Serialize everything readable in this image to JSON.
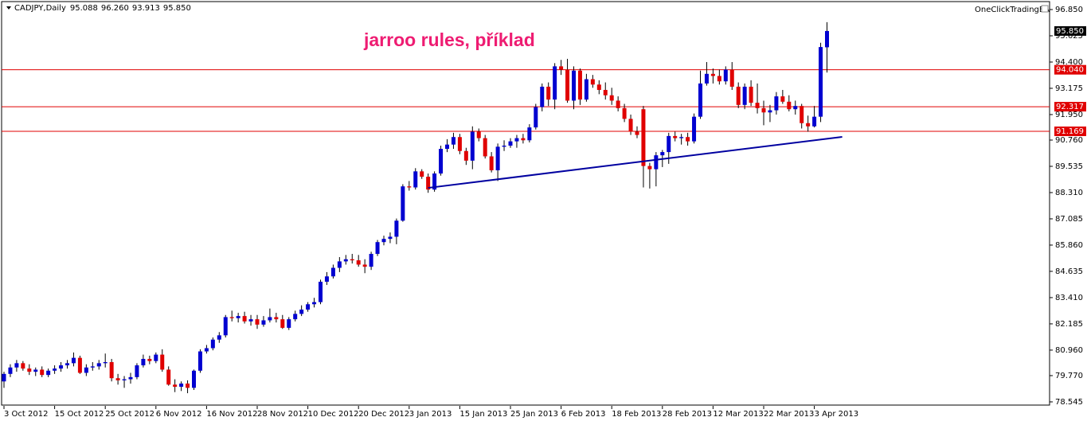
{
  "chart_data": {
    "type": "candlestick",
    "symbol": "CADJPY,Daily",
    "header_values": [
      "95.088",
      "96.260",
      "93.913",
      "95.850"
    ],
    "annotation": "jarroo rules, příklad",
    "indicator": "OneClickTradingEA",
    "up_color": "#0000d0",
    "down_color": "#e00000",
    "wick_color": "#000000",
    "categories": [
      "3 Oct 2012",
      null,
      null,
      null,
      null,
      null,
      null,
      null,
      "15 Oct 2012",
      null,
      null,
      null,
      null,
      null,
      null,
      null,
      "25 Oct 2012",
      null,
      null,
      null,
      null,
      null,
      null,
      null,
      "6 Nov 2012",
      null,
      null,
      null,
      null,
      null,
      null,
      null,
      "16 Nov 2012",
      null,
      null,
      null,
      null,
      null,
      null,
      null,
      "28 Nov 2012",
      null,
      null,
      null,
      null,
      null,
      null,
      null,
      "10 Dec 2012",
      null,
      null,
      null,
      null,
      null,
      null,
      null,
      "20 Dec 2012",
      null,
      null,
      null,
      null,
      null,
      null,
      null,
      "3 Jan 2013",
      null,
      null,
      null,
      null,
      null,
      null,
      null,
      "15 Jan 2013",
      null,
      null,
      null,
      null,
      null,
      null,
      null,
      "25 Jan 2013",
      null,
      null,
      null,
      null,
      null,
      null,
      null,
      "6 Feb 2013",
      null,
      null,
      null,
      null,
      null,
      null,
      null,
      "18 Feb 2013",
      null,
      null,
      null,
      null,
      null,
      null,
      null,
      "28 Feb 2013",
      null,
      null,
      null,
      null,
      null,
      null,
      null,
      "12 Mar 2013",
      null,
      null,
      null,
      null,
      null,
      null,
      null,
      "22 Mar 2013",
      null,
      null,
      null,
      null,
      null,
      null,
      null,
      "3 Apr 2013",
      null,
      null
    ],
    "open": [
      79.5,
      79.85,
      80.15,
      80.35,
      80.1,
      79.95,
      80.05,
      79.8,
      80.0,
      80.1,
      80.25,
      80.35,
      80.6,
      79.9,
      80.15,
      80.2,
      80.35,
      80.4,
      79.65,
      79.55,
      79.6,
      79.7,
      80.25,
      80.55,
      80.45,
      80.75,
      80.05,
      79.35,
      79.25,
      79.4,
      79.2,
      80.0,
      80.9,
      81.05,
      81.45,
      81.65,
      82.5,
      82.45,
      82.55,
      82.3,
      82.4,
      82.15,
      82.35,
      82.5,
      82.4,
      82.0,
      82.4,
      82.65,
      82.85,
      83.1,
      83.2,
      84.15,
      84.4,
      84.8,
      85.1,
      85.2,
      85.15,
      84.95,
      84.85,
      85.45,
      86.0,
      86.15,
      86.25,
      87.0,
      88.6,
      88.55,
      89.3,
      89.05,
      88.45,
      89.2,
      90.35,
      90.55,
      90.9,
      90.25,
      89.8,
      91.15,
      90.85,
      90.0,
      89.35,
      90.45,
      90.5,
      90.7,
      90.85,
      90.75,
      91.35,
      92.3,
      93.25,
      92.65,
      94.2,
      94.05,
      92.6,
      94.0,
      92.65,
      93.6,
      93.35,
      93.1,
      92.85,
      92.6,
      92.25,
      91.75,
      91.15,
      92.2,
      89.55,
      89.4,
      90.05,
      90.2,
      90.95,
      90.85,
      90.9,
      90.7,
      91.85,
      93.4,
      93.85,
      93.75,
      93.5,
      94.05,
      93.25,
      92.4,
      93.25,
      92.5,
      92.25,
      92.05,
      92.15,
      92.8,
      92.55,
      92.2,
      92.35,
      91.55,
      91.4,
      91.85,
      95.088
    ],
    "high": [
      79.95,
      80.3,
      80.5,
      80.45,
      80.3,
      80.15,
      80.2,
      80.1,
      80.25,
      80.4,
      80.5,
      80.85,
      80.7,
      80.3,
      80.4,
      80.5,
      80.8,
      80.55,
      79.85,
      79.75,
      79.9,
      80.35,
      80.75,
      80.7,
      80.85,
      81.0,
      80.2,
      79.6,
      79.5,
      79.55,
      80.05,
      81.0,
      81.2,
      81.55,
      81.8,
      82.6,
      82.8,
      82.7,
      82.75,
      82.6,
      82.6,
      82.55,
      82.9,
      82.7,
      82.6,
      82.5,
      82.8,
      83.05,
      83.2,
      83.4,
      84.25,
      84.6,
      84.95,
      85.3,
      85.4,
      85.45,
      85.4,
      85.2,
      85.55,
      86.1,
      86.3,
      86.45,
      87.1,
      88.7,
      88.85,
      89.45,
      89.4,
      89.2,
      89.3,
      90.5,
      90.8,
      91.1,
      91.05,
      90.4,
      91.4,
      91.3,
      91.0,
      90.2,
      90.6,
      90.75,
      90.85,
      91.0,
      91.05,
      91.5,
      92.45,
      93.4,
      93.45,
      94.35,
      94.5,
      94.55,
      94.2,
      94.1,
      93.85,
      93.8,
      93.55,
      93.45,
      93.2,
      92.8,
      92.45,
      91.95,
      91.4,
      92.35,
      89.7,
      90.2,
      90.3,
      91.1,
      91.15,
      91.05,
      91.1,
      92.0,
      94.0,
      94.4,
      94.1,
      94.05,
      94.2,
      94.4,
      93.45,
      93.4,
      93.55,
      93.4,
      92.6,
      92.4,
      93.0,
      93.1,
      92.85,
      92.6,
      92.45,
      91.9,
      92.35,
      95.3,
      96.26
    ],
    "low": [
      79.2,
      79.7,
      79.95,
      80.0,
      79.8,
      79.75,
      79.7,
      79.7,
      79.85,
      79.95,
      80.1,
      80.2,
      79.85,
      79.75,
      80.0,
      80.05,
      80.15,
      79.5,
      79.35,
      79.2,
      79.4,
      79.6,
      80.15,
      80.3,
      80.35,
      79.95,
      79.3,
      79.0,
      79.05,
      78.95,
      79.1,
      79.9,
      80.8,
      80.95,
      81.3,
      81.55,
      82.3,
      82.25,
      82.2,
      82.1,
      81.95,
      82.05,
      82.25,
      82.25,
      81.95,
      81.9,
      82.3,
      82.55,
      82.75,
      82.95,
      83.1,
      84.0,
      84.3,
      84.6,
      84.95,
      85.0,
      84.85,
      84.55,
      84.7,
      85.35,
      85.85,
      85.95,
      85.9,
      86.95,
      88.4,
      88.45,
      88.95,
      88.3,
      88.35,
      89.1,
      90.2,
      90.35,
      90.1,
      89.6,
      89.4,
      90.7,
      89.9,
      89.25,
      88.85,
      90.25,
      90.4,
      90.4,
      90.6,
      90.65,
      91.25,
      92.1,
      92.35,
      92.2,
      93.8,
      92.5,
      92.2,
      92.4,
      92.55,
      93.2,
      92.9,
      92.65,
      92.4,
      92.1,
      91.6,
      91.0,
      90.85,
      88.55,
      88.5,
      88.6,
      89.5,
      89.65,
      90.7,
      90.55,
      90.5,
      90.6,
      91.75,
      93.3,
      93.4,
      93.35,
      93.35,
      93.1,
      92.25,
      92.2,
      92.35,
      92.0,
      91.45,
      91.6,
      91.95,
      92.45,
      92.1,
      91.95,
      91.3,
      91.15,
      91.35,
      91.6,
      93.913
    ],
    "close": [
      79.85,
      80.15,
      80.35,
      80.1,
      79.95,
      80.05,
      79.8,
      80.0,
      80.1,
      80.25,
      80.35,
      80.6,
      79.9,
      80.15,
      80.2,
      80.35,
      80.4,
      79.65,
      79.55,
      79.6,
      79.7,
      80.25,
      80.55,
      80.45,
      80.75,
      80.05,
      79.35,
      79.25,
      79.4,
      79.2,
      80.0,
      80.9,
      81.05,
      81.45,
      81.65,
      82.5,
      82.45,
      82.55,
      82.3,
      82.4,
      82.15,
      82.35,
      82.5,
      82.4,
      82.0,
      82.4,
      82.65,
      82.85,
      83.1,
      83.2,
      84.15,
      84.4,
      84.8,
      85.1,
      85.2,
      85.15,
      84.95,
      84.85,
      85.45,
      86.0,
      86.15,
      86.25,
      87.0,
      88.6,
      88.55,
      89.3,
      89.05,
      88.45,
      89.2,
      90.35,
      90.55,
      90.9,
      90.25,
      89.8,
      91.15,
      90.85,
      90.0,
      89.35,
      90.45,
      90.5,
      90.7,
      90.85,
      90.75,
      91.35,
      92.3,
      93.25,
      92.65,
      94.2,
      94.05,
      92.6,
      94.0,
      92.65,
      93.6,
      93.35,
      93.1,
      92.85,
      92.6,
      92.25,
      91.75,
      91.15,
      91.0,
      89.55,
      89.4,
      90.05,
      90.2,
      90.95,
      90.85,
      90.9,
      90.7,
      91.85,
      93.4,
      93.85,
      93.75,
      93.5,
      94.05,
      93.25,
      92.4,
      93.25,
      92.5,
      92.25,
      92.05,
      92.15,
      92.8,
      92.55,
      92.2,
      92.35,
      91.55,
      91.4,
      91.85,
      95.1,
      95.85
    ],
    "ylim": [
      78.358,
      97.221
    ],
    "yticks": [
      {
        "value": 96.85,
        "label": "96.850"
      },
      {
        "value": 95.625,
        "label": "95.625"
      },
      {
        "value": 94.4,
        "label": "94.400"
      },
      {
        "value": 93.175,
        "label": "93.175"
      },
      {
        "value": 91.95,
        "label": "91.950"
      },
      {
        "value": 90.76,
        "label": "90.760"
      },
      {
        "value": 89.535,
        "label": "89.535"
      },
      {
        "value": 88.31,
        "label": "88.310"
      },
      {
        "value": 87.085,
        "label": "87.085"
      },
      {
        "value": 85.86,
        "label": "85.860"
      },
      {
        "value": 84.635,
        "label": "84.635"
      },
      {
        "value": 83.41,
        "label": "83.410"
      },
      {
        "value": 82.185,
        "label": "82.185"
      },
      {
        "value": 80.96,
        "label": "80.960"
      },
      {
        "value": 79.77,
        "label": "79.770"
      },
      {
        "value": 78.545,
        "label": "78.545"
      }
    ],
    "hlines": [
      {
        "value": 94.04,
        "label": "94.040"
      },
      {
        "value": 92.317,
        "label": "92.317"
      },
      {
        "value": 91.169,
        "label": "91.169"
      }
    ],
    "hline_color": "#e00000",
    "trendline": {
      "x": [
        67,
        132.4
      ],
      "y": [
        88.53,
        90.91
      ],
      "color": "#0000a0"
    }
  }
}
